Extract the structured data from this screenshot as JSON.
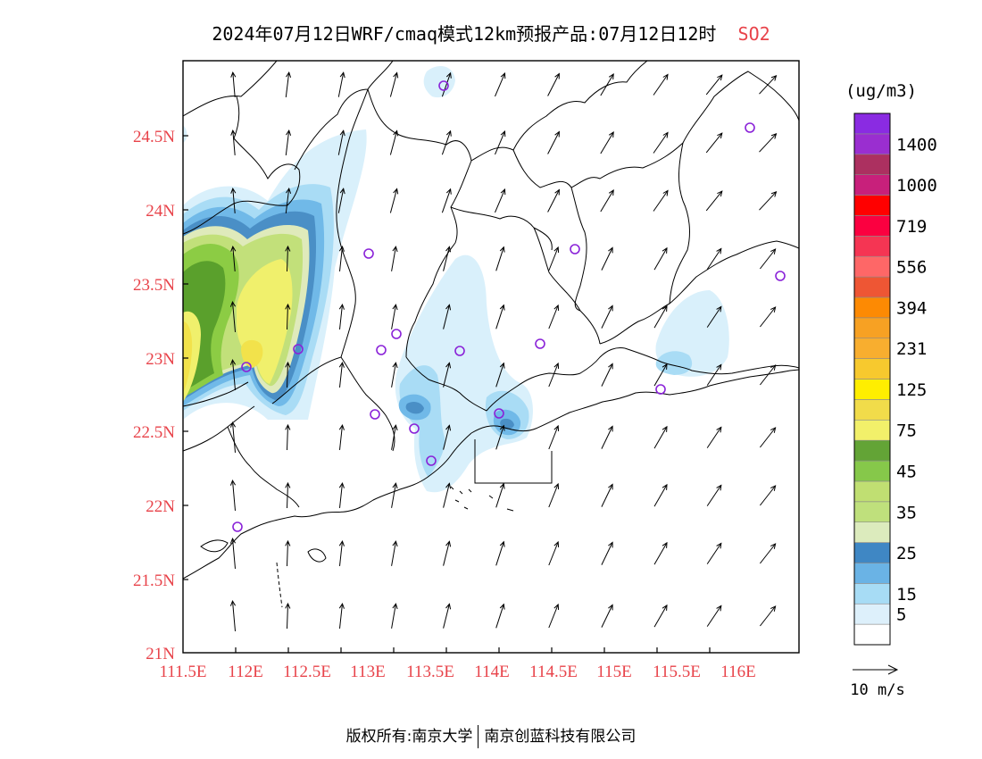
{
  "title": {
    "text": "2024年07月12日WRF/cmaq模式12km预报产品:07月12日12时",
    "pollutant": "SO2"
  },
  "map": {
    "lat_ticks": [
      "24.5N",
      "24N",
      "23.5N",
      "23N",
      "22.5N",
      "22N",
      "21.5N",
      "21N"
    ],
    "lon_ticks": [
      "111.5E",
      "112E",
      "112.5E",
      "113E",
      "113.5E",
      "114E",
      "114.5E",
      "115E",
      "115.5E",
      "116E"
    ],
    "lon_range": [
      111.5,
      116.5
    ],
    "lat_range": [
      21.0,
      25.0
    ],
    "tick_color": "#e8434a",
    "wind_direction": "predominantly northward (southerly wind), veering north-east on the eastern side",
    "plume_colors": [
      "#d9f0fb",
      "#a9dcf5",
      "#70b9e8",
      "#4a8fc6",
      "#dfeabb",
      "#c2e07a",
      "#8ccc44",
      "#5aa02c",
      "#f0f06c",
      "#f2e24b"
    ],
    "city_marker_color": "#8a22d8"
  },
  "colorbar": {
    "unit": "(ug/m3)",
    "levels": [
      {
        "label": "",
        "color": "#ffffff"
      },
      {
        "label": "5",
        "color": "#ddf0fb"
      },
      {
        "label": "15",
        "color": "#a7dcf5"
      },
      {
        "label": "",
        "color": "#6ab3e5"
      },
      {
        "label": "25",
        "color": "#3f87c4"
      },
      {
        "label": "",
        "color": "#dcebbd"
      },
      {
        "label": "35",
        "color": "#bfe07c"
      },
      {
        "label": "",
        "color": "#c0df72"
      },
      {
        "label": "45",
        "color": "#86c84a"
      },
      {
        "label": "",
        "color": "#63a436"
      },
      {
        "label": "75",
        "color": "#f2f06a"
      },
      {
        "label": "",
        "color": "#f1dc4a"
      },
      {
        "label": "125",
        "color": "#ffee00"
      },
      {
        "label": "",
        "color": "#f7c92e"
      },
      {
        "label": "231",
        "color": "#f8ae2f"
      },
      {
        "label": "",
        "color": "#f7a123"
      },
      {
        "label": "394",
        "color": "#fd8a03"
      },
      {
        "label": "",
        "color": "#ee5634"
      },
      {
        "label": "556",
        "color": "#fe6767"
      },
      {
        "label": "",
        "color": "#f53553"
      },
      {
        "label": "719",
        "color": "#fb0040"
      },
      {
        "label": "",
        "color": "#ff0000"
      },
      {
        "label": "1000",
        "color": "#c8207b"
      },
      {
        "label": "",
        "color": "#ac3060"
      },
      {
        "label": "1400",
        "color": "#9a2ed0"
      },
      {
        "label": "",
        "color": "#8a2be2"
      }
    ]
  },
  "wind_legend": {
    "label": "10 m/s"
  },
  "footer": {
    "left": "版权所有:南京大学",
    "right": "南京创蓝科技有限公司"
  }
}
